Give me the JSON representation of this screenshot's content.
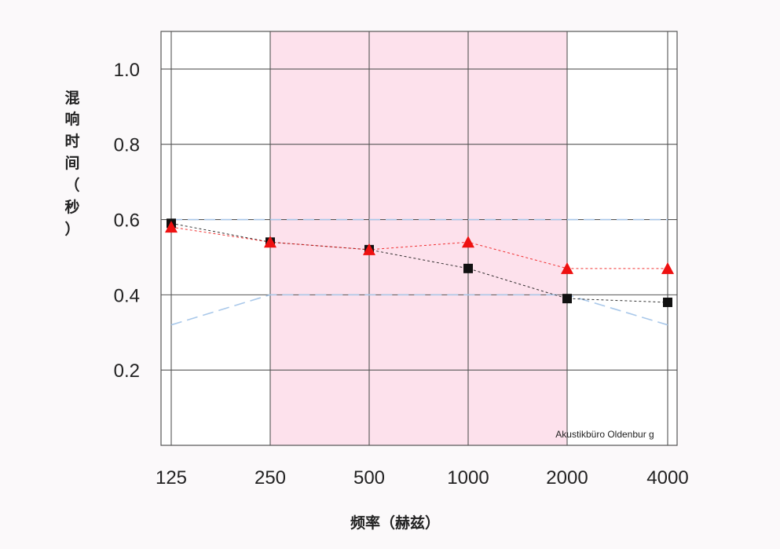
{
  "chart_data": {
    "type": "line",
    "xlabel": "频率（赫兹）",
    "ylabel": "混响时间（秒）",
    "credit": "Akustikbüro Oldenbur g",
    "categories": [
      "125",
      "250",
      "500",
      "1000",
      "2000",
      "4000"
    ],
    "yticks": [
      "0.2",
      "0.4",
      "0.6",
      "0.8",
      "1.0"
    ],
    "ylim": [
      0,
      1.1
    ],
    "grid": true,
    "highlight_band": {
      "from": "250",
      "to": "2000",
      "color": "#fde1ec"
    },
    "series": [
      {
        "marker": "square",
        "color": "#111111",
        "values": [
          0.59,
          0.54,
          0.52,
          0.47,
          0.39,
          0.38
        ]
      },
      {
        "marker": "triangle",
        "color": "#ee1111",
        "values": [
          0.58,
          0.54,
          0.52,
          0.54,
          0.47,
          0.47
        ]
      }
    ],
    "tolerance_lines": [
      {
        "color": "#a9c8ea",
        "values": [
          0.6,
          0.6,
          0.6,
          0.6,
          0.6,
          0.6
        ]
      },
      {
        "color": "#a9c8ea",
        "values": [
          0.32,
          0.4,
          0.4,
          0.4,
          0.4,
          0.32
        ]
      }
    ]
  }
}
